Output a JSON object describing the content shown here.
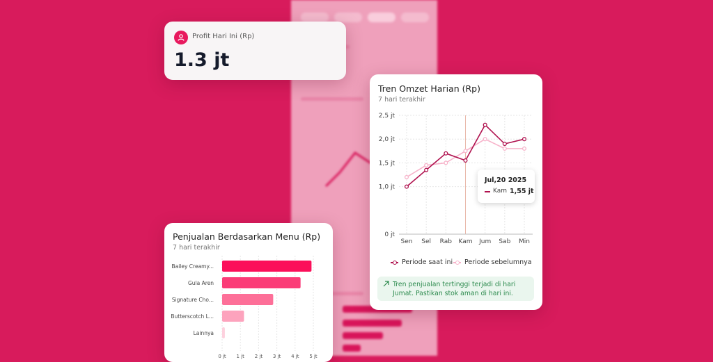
{
  "profit_card": {
    "label": "Profit Hari Ini (Rp)",
    "value": "1.3 jt",
    "icon": "user-icon"
  },
  "trend_card": {
    "title": "Tren Omzet Harian (Rp)",
    "subtitle": "7 hari terakhir",
    "tooltip": {
      "date": "Jul,20 2025",
      "label": "Kam",
      "value": "1,55 jt"
    },
    "legend": {
      "current": "Periode saat ini",
      "previous": "Periode sebelumnya"
    },
    "insight": {
      "icon": "trend-up-icon",
      "text": "Tren penjualan tertinggi terjadi di hari Jumat. Pastikan stok aman di hari ini."
    }
  },
  "menu_card": {
    "title": "Penjualan Berdasarkan Menu (Rp)",
    "subtitle": "7 hari terakhir"
  },
  "colors": {
    "background": "#d81b5c",
    "current_series": "#b0124f",
    "previous_series": "#f7b3ca",
    "bar_1": "#fb0f5a",
    "bar_2": "#fb3c77",
    "bar_3": "#fd6f98",
    "bar_4": "#fda3bd",
    "bar_5": "#fdd1de",
    "insight_text": "#2e8b4f"
  },
  "chart_data": [
    {
      "type": "line",
      "title": "Tren Omzet Harian (Rp)",
      "categories": [
        "Sen",
        "Sel",
        "Rab",
        "Kam",
        "Jum",
        "Sab",
        "Min"
      ],
      "y_ticks": [
        "0 jt",
        "1,0 jt",
        "1,5 jt",
        "2,0 jt",
        "2,5 jt"
      ],
      "ylim": [
        0,
        2.5
      ],
      "series": [
        {
          "name": "Periode saat ini",
          "values": [
            1.0,
            1.35,
            1.7,
            1.55,
            2.3,
            1.9,
            2.0
          ]
        },
        {
          "name": "Periode sebelumnya",
          "values": [
            1.2,
            1.45,
            1.5,
            1.75,
            2.0,
            1.8,
            1.8
          ]
        }
      ],
      "grid": true,
      "legend_position": "bottom",
      "highlight_category": "Kam"
    },
    {
      "type": "bar",
      "orientation": "horizontal",
      "title": "Penjualan Berdasarkan Menu (Rp)",
      "categories": [
        "Bailey Creamy...",
        "Gula Aren",
        "Signature Cho...",
        "Butterscotch L...",
        "Lainnya"
      ],
      "values": [
        4.9,
        4.3,
        2.8,
        1.2,
        0.15
      ],
      "x_ticks": [
        "0 jt",
        "1 jt",
        "2 jt",
        "3 jt",
        "4 jt",
        "5 jt"
      ],
      "xlim": [
        0,
        5
      ],
      "grid": true
    }
  ]
}
